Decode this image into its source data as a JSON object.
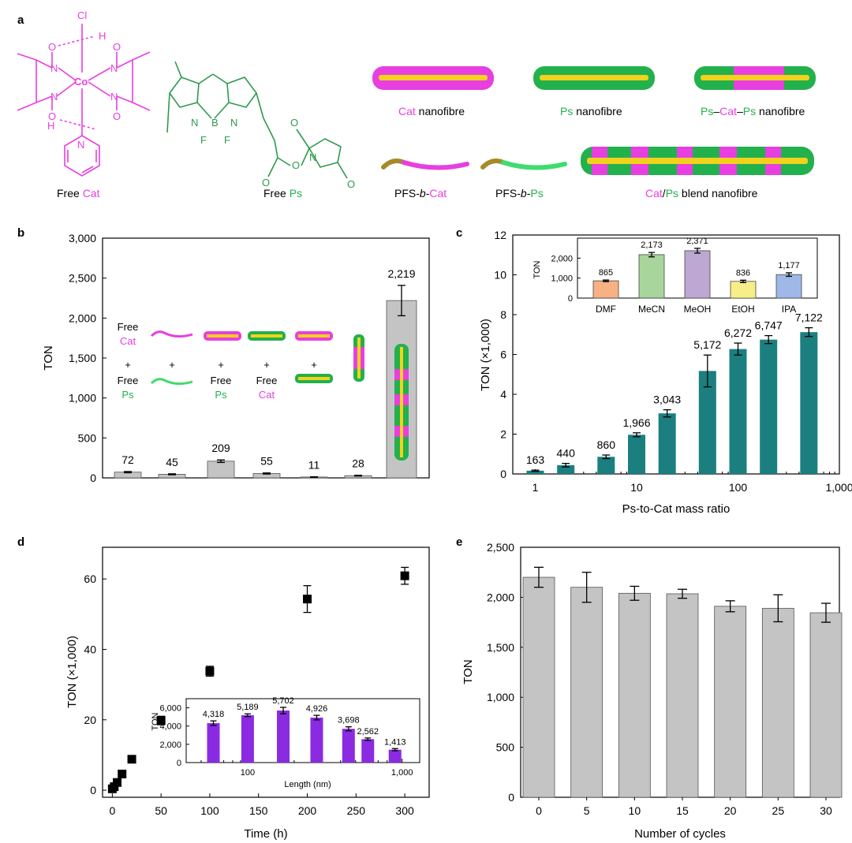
{
  "colors": {
    "cat": "#e83fe0",
    "ps": "#22b14c",
    "ps_mol": "#2e9a4e",
    "core": "#f2d21c",
    "bar_grey": "#c4c4c4",
    "bar_teal": "#1b7f80",
    "bar_purple": "#8a2be2",
    "tags": [
      "#ffffff",
      "#ffffff"
    ]
  },
  "panel_a": {
    "panel_label": "a",
    "mol_labels": {
      "cl": "Cl",
      "co": "Co",
      "h": "H",
      "o": "O",
      "n": "N",
      "b": "B",
      "f": "F"
    },
    "free_cat": {
      "prefix": "Free ",
      "suffix": "Cat"
    },
    "free_ps": {
      "prefix": "Free ",
      "suffix": "Ps"
    },
    "cat_fibre": {
      "highlight": "Cat",
      "rest": " nanofibre"
    },
    "ps_fibre": {
      "highlight": "Ps",
      "rest": " nanofibre"
    },
    "pcp_fibre": {
      "p1": "Ps",
      "d1": "–",
      "c": "Cat",
      "d2": "–",
      "p2": "Ps",
      "rest": " nanofibre"
    },
    "pfs_cat": {
      "a": "PFS-",
      "b": "b",
      "c": "-",
      "d": "Cat"
    },
    "pfs_ps": {
      "a": "PFS-",
      "b": "b",
      "c": "-",
      "d": "Ps"
    },
    "blend": {
      "c": "Cat",
      "slash": "/",
      "p": "Ps",
      "rest": " blend nanofibre"
    }
  },
  "panel_b_text": {
    "panel_label": "b",
    "col1": {
      "free": "Free",
      "cat": "Cat",
      "plus": "+",
      "free2": "Free",
      "ps": "Ps"
    },
    "plus": "+",
    "col3": {
      "free": "Free",
      "ps": "Ps"
    },
    "col4": {
      "free": "Free",
      "cat": "Cat"
    }
  },
  "chart_data": [
    {
      "id": "b",
      "type": "bar",
      "ylabel": "TON",
      "ylim": [
        0,
        3000
      ],
      "yticks": [
        0,
        500,
        1000,
        1500,
        2000,
        2500,
        3000
      ],
      "ytick_labels": [
        "0",
        "500",
        "1,000",
        "1,500",
        "2,000",
        "2,500",
        "3,000"
      ],
      "values": [
        72,
        45,
        209,
        55,
        11,
        28,
        2219
      ],
      "errors": [
        8,
        6,
        16,
        7,
        3,
        5,
        190
      ],
      "value_labels": [
        "72",
        "45",
        "209",
        "55",
        "11",
        "28",
        "2,219"
      ]
    },
    {
      "id": "c",
      "type": "bar",
      "xscale": "log",
      "xlabel": "Ps-to-Cat mass ratio",
      "ylabel": "TON (×1,000)",
      "xlim": [
        0.6,
        1000
      ],
      "ylim": [
        0,
        12
      ],
      "yticks": [
        0,
        2,
        4,
        6,
        8,
        10,
        12
      ],
      "xticks": [
        1,
        10,
        100,
        1000
      ],
      "xtick_labels": [
        "1",
        "10",
        "100",
        "1,000"
      ],
      "x": [
        1,
        2,
        5,
        10,
        20,
        50,
        100,
        200,
        500
      ],
      "values": [
        0.163,
        0.44,
        0.86,
        1.966,
        3.043,
        5.172,
        6.272,
        6.747,
        7.122
      ],
      "errors": [
        0.03,
        0.09,
        0.09,
        0.1,
        0.18,
        0.8,
        0.3,
        0.2,
        0.22
      ],
      "value_labels": [
        "163",
        "440",
        "860",
        "1,966",
        "3,043",
        "5,172",
        "6,272",
        "6,747",
        "7,122"
      ]
    },
    {
      "id": "c_inset",
      "type": "bar",
      "ylabel": "TON",
      "ylim": [
        0,
        3000
      ],
      "yticks": [
        0,
        1000,
        2000
      ],
      "ytick_labels": [
        "0",
        "1,000",
        "2,000"
      ],
      "categories": [
        "DMF",
        "MeCN",
        "MeOH",
        "EtOH",
        "IPA"
      ],
      "values": [
        865,
        2173,
        2371,
        836,
        1177
      ],
      "errors": [
        40,
        110,
        120,
        60,
        90
      ],
      "value_labels": [
        "865",
        "2,173",
        "2,371",
        "836",
        "1,177"
      ],
      "colors": [
        "#f7b183",
        "#a8d59b",
        "#bca8d3",
        "#f8ee88",
        "#9fb8e8"
      ]
    },
    {
      "id": "d",
      "type": "scatter",
      "xlabel": "Time (h)",
      "ylabel": "TON (×1,000)",
      "xlim": [
        -10,
        325
      ],
      "ylim": [
        -2,
        69
      ],
      "xticks": [
        0,
        50,
        100,
        150,
        200,
        250,
        300
      ],
      "yticks": [
        0,
        20,
        40,
        60
      ],
      "x": [
        0,
        2,
        5,
        10,
        20,
        50,
        100,
        200,
        300
      ],
      "values": [
        0.4,
        1.0,
        2.2,
        4.6,
        8.8,
        19.8,
        33.8,
        54.3,
        60.9
      ],
      "errors": [
        0,
        0,
        0,
        0,
        0,
        1.2,
        1.4,
        3.8,
        2.4
      ]
    },
    {
      "id": "d_inset",
      "type": "bar",
      "xscale": "log",
      "xlabel": "Length (nm)",
      "ylabel": "TON",
      "xlim": [
        40,
        1300
      ],
      "ylim": [
        0,
        7000
      ],
      "yticks": [
        0,
        2000,
        4000,
        6000
      ],
      "ytick_labels": [
        "0",
        "2,000",
        "4,000",
        "6,000"
      ],
      "xticks": [
        100,
        1000
      ],
      "xtick_labels": [
        "100",
        "1,000"
      ],
      "x": [
        60,
        100,
        170,
        280,
        450,
        600,
        900
      ],
      "values": [
        4318,
        5189,
        5702,
        4926,
        3698,
        2562,
        1413
      ],
      "errors": [
        250,
        150,
        350,
        250,
        220,
        130,
        120
      ],
      "value_labels": [
        "4,318",
        "5,189",
        "5,702",
        "4,926",
        "3,698",
        "2,562",
        "1,413"
      ]
    },
    {
      "id": "e",
      "type": "bar",
      "xlabel": "Number of cycles",
      "ylabel": "TON",
      "ylim": [
        0,
        2500
      ],
      "yticks": [
        0,
        500,
        1000,
        1500,
        2000,
        2500
      ],
      "ytick_labels": [
        "0",
        "500",
        "1,000",
        "1,500",
        "2,000",
        "2,500"
      ],
      "categories": [
        "0",
        "5",
        "10",
        "15",
        "20",
        "25",
        "30"
      ],
      "values": [
        2200,
        2100,
        2040,
        2035,
        1910,
        1890,
        1845
      ],
      "errors": [
        100,
        150,
        70,
        45,
        55,
        135,
        95
      ]
    }
  ],
  "panel_labels": {
    "c": "c",
    "d": "d",
    "e": "e"
  }
}
